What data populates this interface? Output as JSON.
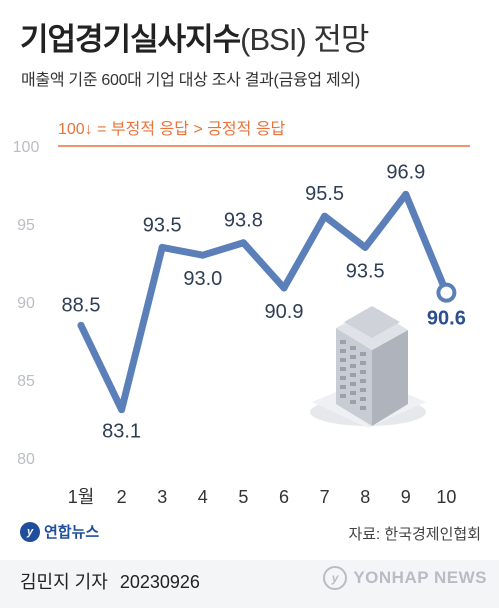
{
  "header": {
    "title_main": "기업경기실사지수",
    "title_paren": "(BSI)",
    "title_tail": " 전망",
    "subtitle": "매출액 기준 600대 기업 대상 조사 결과(금융업 제외)",
    "reference_note": "100↓ = 부정적 응답 > 긍정적 응답"
  },
  "chart_data": {
    "type": "line",
    "title": "기업경기실사지수(BSI) 전망",
    "categories": [
      "1월",
      "2",
      "3",
      "4",
      "5",
      "6",
      "7",
      "8",
      "9",
      "10"
    ],
    "values": [
      88.5,
      83.1,
      93.5,
      93.0,
      93.8,
      90.9,
      95.5,
      93.5,
      96.9,
      90.6
    ],
    "value_labels": [
      "88.5",
      "83.1",
      "93.5",
      "93.0",
      "93.8",
      "90.9",
      "95.5",
      "93.5",
      "96.9",
      "90.6"
    ],
    "ylim": [
      80,
      100
    ],
    "yticks": [
      80,
      85,
      90,
      95,
      100
    ],
    "ytick_labels": [
      "80",
      "85",
      "90",
      "95",
      "100"
    ],
    "reference_line": 100,
    "grid": false,
    "colors": {
      "line": "#5b7fb8",
      "last_value": "#2b4f8f",
      "reference": "#e8743b",
      "axis_text": "#b9bdc4"
    }
  },
  "footer": {
    "agency": "연합뉴스",
    "source": "자료: 한국경제인협회",
    "reporter": "김민지 기자",
    "date": "20230926",
    "watermark": "YONHAP NEWS"
  },
  "icons": {
    "agency_logo": "yonhap-logo-icon",
    "watermark_logo": "yonhap-watermark-icon",
    "illustration": "office-building-icon"
  }
}
